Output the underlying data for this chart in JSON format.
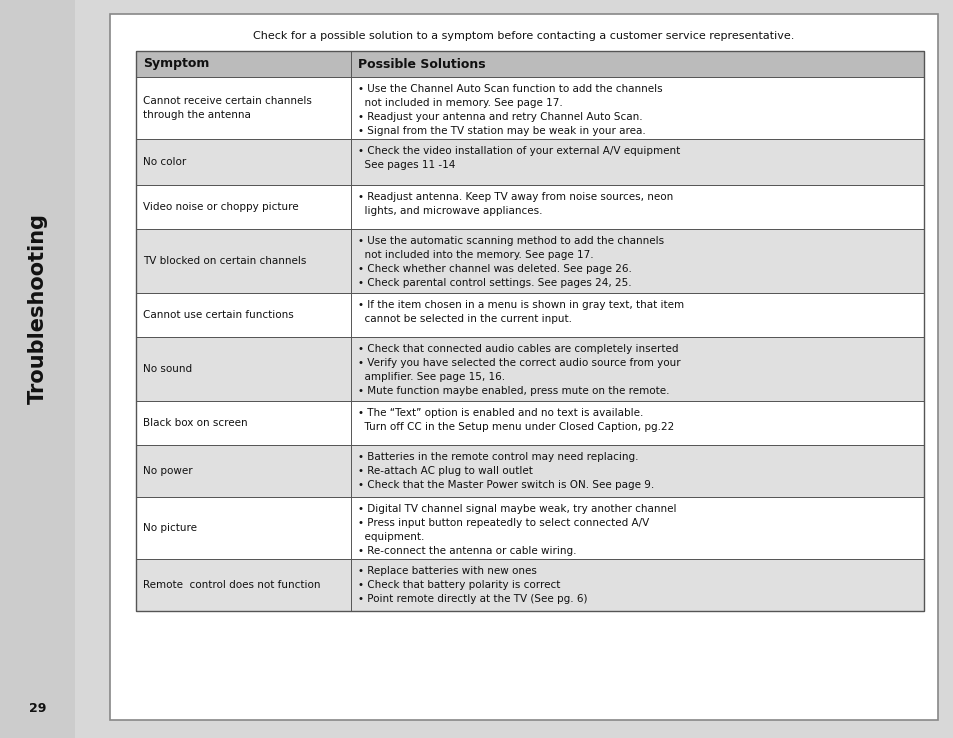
{
  "page_bg": "#d8d8d8",
  "content_bg": "#ffffff",
  "sidebar_bg": "#cccccc",
  "table_header_bg": "#bbbbbb",
  "row_alt_bg": "#e0e0e0",
  "row_white_bg": "#ffffff",
  "sidebar_text": "Troubleshooting",
  "page_number": "29",
  "header_note": "Check for a possible solution to a symptom before contacting a customer service representative.",
  "col1_header": "Symptom",
  "col2_header": "Possible Solutions",
  "rows": [
    {
      "symptom": "Cannot receive certain channels\nthrough the antenna",
      "solutions": "• Use the Channel Auto Scan function to add the channels\n  not included in memory. See page 17.\n• Readjust your antenna and retry Channel Auto Scan.\n• Signal from the TV station may be weak in your area.",
      "shaded": false,
      "rh": 62
    },
    {
      "symptom": "No color",
      "solutions": "• Check the video installation of your external A/V equipment\n  See pages 11 -14",
      "shaded": true,
      "rh": 46
    },
    {
      "symptom": "Video noise or choppy picture",
      "solutions": "• Readjust antenna. Keep TV away from noise sources, neon\n  lights, and microwave appliances.",
      "shaded": false,
      "rh": 44
    },
    {
      "symptom": "TV blocked on certain channels",
      "solutions": "• Use the automatic scanning method to add the channels\n  not included into the memory. See page 17.\n• Check whether channel was deleted. See page 26.\n• Check parental control settings. See pages 24, 25.",
      "shaded": true,
      "rh": 64
    },
    {
      "symptom": "Cannot use certain functions",
      "solutions": "• If the item chosen in a menu is shown in gray text, that item\n  cannot be selected in the current input.",
      "shaded": false,
      "rh": 44
    },
    {
      "symptom": "No sound",
      "solutions": "• Check that connected audio cables are completely inserted\n• Verify you have selected the correct audio source from your\n  amplifier. See page 15, 16.\n• Mute function maybe enabled, press mute on the remote.",
      "shaded": true,
      "rh": 64
    },
    {
      "symptom": "Black box on screen",
      "solutions": "• The “Text” option is enabled and no text is available.\n  Turn off CC in the Setup menu under Closed Caption, pg.22",
      "shaded": false,
      "rh": 44
    },
    {
      "symptom": "No power",
      "solutions": "• Batteries in the remote control may need replacing.\n• Re-attach AC plug to wall outlet\n• Check that the Master Power switch is ON. See page 9.",
      "shaded": true,
      "rh": 52
    },
    {
      "symptom": "No picture",
      "solutions": "• Digital TV channel signal maybe weak, try another channel\n• Press input button repeatedly to select connected A/V\n  equipment.\n• Re-connect the antenna or cable wiring.",
      "shaded": false,
      "rh": 62
    },
    {
      "symptom": "Remote  control does not function",
      "solutions": "• Replace batteries with new ones\n• Check that battery polarity is correct\n• Point remote directly at the TV (See pg. 6)",
      "shaded": true,
      "rh": 52
    }
  ]
}
